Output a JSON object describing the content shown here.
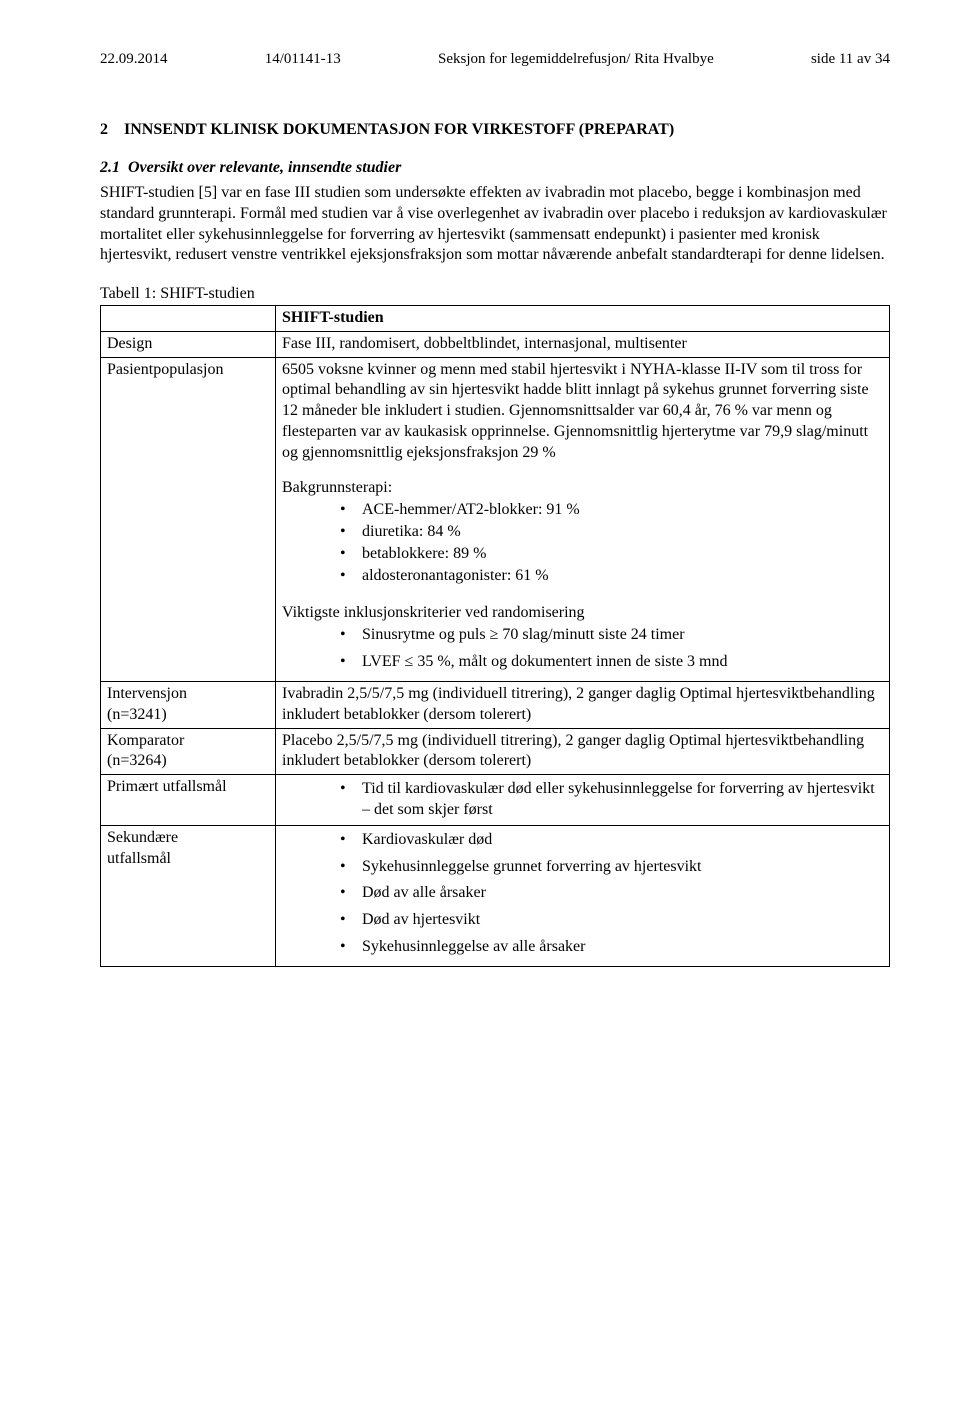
{
  "header": {
    "date": "22.09.2014",
    "case_no": "14/01141-13",
    "dept": "Seksjon for legemiddelrefusjon/ Rita Hvalbye",
    "page": "side 11 av 34"
  },
  "section": {
    "number": "2",
    "title": "INNSENDT KLINISK DOKUMENTASJON FOR VIRKESTOFF (PREPARAT)"
  },
  "subsection": {
    "number": "2.1",
    "title": "Oversikt over relevante, innsendte studier"
  },
  "intro_para": "SHIFT-studien [5] var en fase III studien som undersøkte effekten av ivabradin mot placebo, begge i kombinasjon med standard grunnterapi. Formål med studien var å vise overlegenhet av ivabradin over placebo i reduksjon av kardiovaskulær mortalitet eller sykehusinnleggelse for forverring av hjertesvikt (sammensatt endepunkt) i pasienter med kronisk hjertesvikt, redusert venstre ventrikkel ejeksjonsfraksjon som mottar nåværende anbefalt standardterapi for denne lidelsen.",
  "table_caption": "Tabell 1: SHIFT-studien",
  "table": {
    "col_header": "SHIFT-studien",
    "rows": {
      "design": {
        "label": "Design",
        "value": "Fase III, randomisert, dobbeltblindet, internasjonal, multisenter"
      },
      "population": {
        "label": "Pasientpopulasjon",
        "para": "6505 voksne kvinner og menn med stabil hjertesvikt i NYHA-klasse II-IV som til tross for optimal behandling av sin hjertesvikt hadde blitt innlagt på sykehus grunnet forverring siste 12 måneder ble inkludert i studien. Gjennomsnittsalder var 60,4 år, 76 % var menn og flesteparten var av kaukasisk opprinnelse. Gjennomsnittlig hjerterytme var 79,9 slag/minutt og gjennomsnittlig ejeksjonsfraksjon 29 %",
        "bg_label": "Bakgrunnsterapi:",
        "bg_items": [
          "ACE-hemmer/AT2-blokker: 91 %",
          "diuretika: 84 %",
          "betablokkere: 89 %",
          "aldosteronantagonister: 61 %"
        ],
        "incl_label": "Viktigste inklusjonskriterier ved randomisering",
        "incl_items": [
          "Sinusrytme og puls ≥ 70 slag/minutt siste 24 timer",
          "LVEF ≤ 35 %, målt og dokumentert innen de siste 3 mnd"
        ]
      },
      "intervention": {
        "label_l1": "Intervensjon",
        "label_l2": "(n=3241)",
        "value": "Ivabradin 2,5/5/7,5 mg (individuell titrering), 2 ganger daglig Optimal hjertesviktbehandling inkludert betablokker (dersom tolerert)"
      },
      "comparator": {
        "label_l1": "Komparator",
        "label_l2": "(n=3264)",
        "value": "Placebo 2,5/5/7,5 mg (individuell titrering), 2 ganger daglig Optimal hjertesviktbehandling inkludert betablokker (dersom tolerert)"
      },
      "primary": {
        "label": "Primært utfallsmål",
        "items": [
          "Tid til kardiovaskulær død eller sykehusinnleggelse for forverring av hjertesvikt – det som skjer først"
        ]
      },
      "secondary": {
        "label_l1": "Sekundære",
        "label_l2": "utfallsmål",
        "items": [
          "Kardiovaskulær død",
          "Sykehusinnleggelse grunnet forverring av hjertesvikt",
          "Død av alle årsaker",
          "Død av hjertesvikt",
          "Sykehusinnleggelse av alle årsaker"
        ]
      }
    }
  }
}
